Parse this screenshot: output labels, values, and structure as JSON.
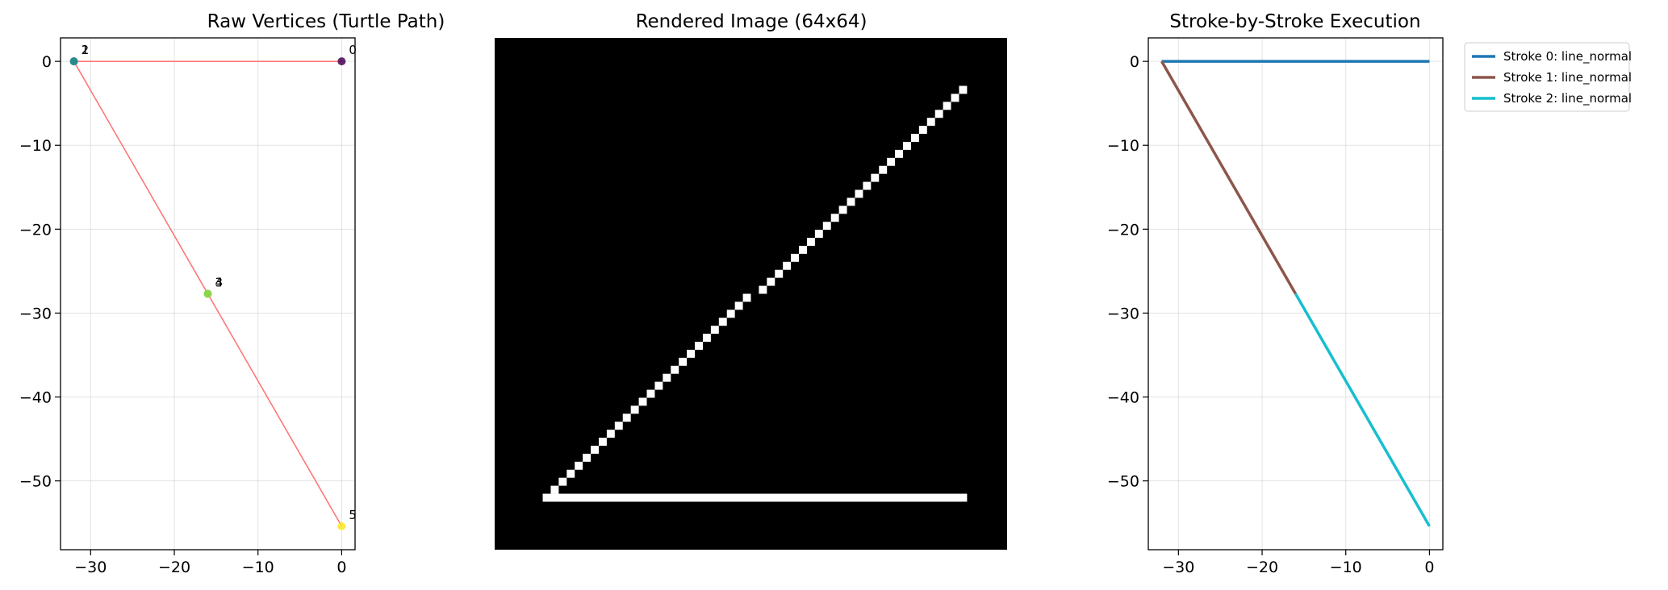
{
  "chart_data": [
    {
      "type": "scatter",
      "title": "Raw Vertices (Turtle Path)",
      "xlim": [
        -33.6,
        1.6
      ],
      "ylim": [
        -58.2,
        2.8
      ],
      "xticks": [
        -30,
        -20,
        -10,
        0
      ],
      "yticks": [
        0,
        -10,
        -20,
        -30,
        -40,
        -50
      ],
      "tick_labels_x": [
        "−30",
        "−20",
        "−10",
        "0"
      ],
      "tick_labels_y": [
        "0",
        "−10",
        "−20",
        "−30",
        "−40",
        "−50"
      ],
      "grid": true,
      "path_color": "#ff7777",
      "points": [
        {
          "label": "0",
          "x": 0,
          "y": 0,
          "color": "#440154"
        },
        {
          "label": "1",
          "x": -32,
          "y": 0,
          "color": "#3b528b"
        },
        {
          "label": "2",
          "x": -32,
          "y": 0,
          "color": "#21918c"
        },
        {
          "label": "3",
          "x": -16,
          "y": -27.7,
          "color": "#5ec962"
        },
        {
          "label": "4",
          "x": -16,
          "y": -27.7,
          "color": "#8fd744"
        },
        {
          "label": "5",
          "x": 0,
          "y": -55.4,
          "color": "#fde725"
        }
      ]
    },
    {
      "type": "heatmap",
      "title": "Rendered Image (64x64)",
      "size": 64,
      "background": "#000000",
      "foreground": "#ffffff",
      "horizontal_stroke": {
        "row": 57,
        "col_start": 6,
        "col_end": 58
      },
      "diagonal_stroke": {
        "row_start": 6,
        "row_end": 56,
        "col_start": 58,
        "col_end": 7
      }
    },
    {
      "type": "line",
      "title": "Stroke-by-Stroke Execution",
      "xlim": [
        -33.6,
        1.6
      ],
      "ylim": [
        -58.2,
        2.8
      ],
      "xticks": [
        -30,
        -20,
        -10,
        0
      ],
      "yticks": [
        0,
        -10,
        -20,
        -30,
        -40,
        -50
      ],
      "tick_labels_x": [
        "−30",
        "−20",
        "−10",
        "0"
      ],
      "tick_labels_y": [
        "0",
        "−10",
        "−20",
        "−30",
        "−40",
        "−50"
      ],
      "grid": true,
      "legend": "outside-upper-right",
      "series": [
        {
          "name": "Stroke 0: line_normal",
          "color": "#1f77b4",
          "x": [
            0,
            -32
          ],
          "y": [
            0,
            0
          ]
        },
        {
          "name": "Stroke 1: line_normal",
          "color": "#8c564b",
          "x": [
            -32,
            -16
          ],
          "y": [
            0,
            -27.7
          ]
        },
        {
          "name": "Stroke 2: line_normal",
          "color": "#17becf",
          "x": [
            -16,
            0
          ],
          "y": [
            -27.7,
            -55.4
          ]
        }
      ]
    }
  ]
}
